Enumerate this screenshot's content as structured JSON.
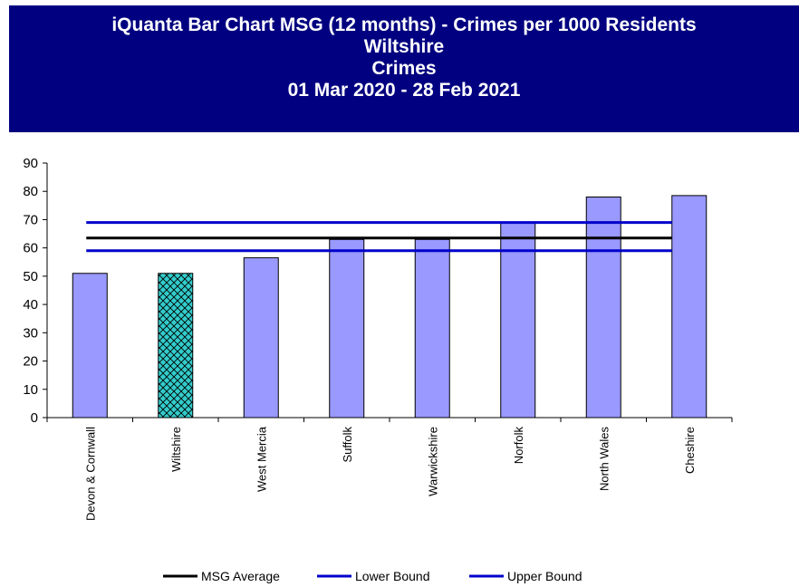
{
  "chart_data": {
    "type": "bar",
    "title_lines": [
      "iQuanta Bar Chart MSG (12 months) - Crimes per 1000 Residents",
      "Wiltshire",
      "Crimes",
      "01 Mar 2020 - 28 Feb 2021"
    ],
    "categories": [
      "Devon & Cornwall",
      "Wiltshire",
      "West Mercia",
      "Suffolk",
      "Warwickshire",
      "Norfolk",
      "North Wales",
      "Cheshire"
    ],
    "values": [
      51,
      51,
      56.5,
      63,
      63,
      69,
      78,
      78.5
    ],
    "highlight_category": "Wiltshire",
    "ylim": [
      0,
      90
    ],
    "yticks": [
      0,
      10,
      20,
      30,
      40,
      50,
      60,
      70,
      80,
      90
    ],
    "xlabel": "",
    "ylabel": "",
    "lines": [
      {
        "name": "MSG Average",
        "value": 63.5,
        "color": "#000000"
      },
      {
        "name": "Lower Bound",
        "value": 59,
        "color": "#0000cc"
      },
      {
        "name": "Upper Bound",
        "value": 69,
        "color": "#0000cc"
      }
    ],
    "bar_color": "#9999ff",
    "highlight_color": "#33cccc",
    "grid": false,
    "legend_position": "bottom"
  }
}
